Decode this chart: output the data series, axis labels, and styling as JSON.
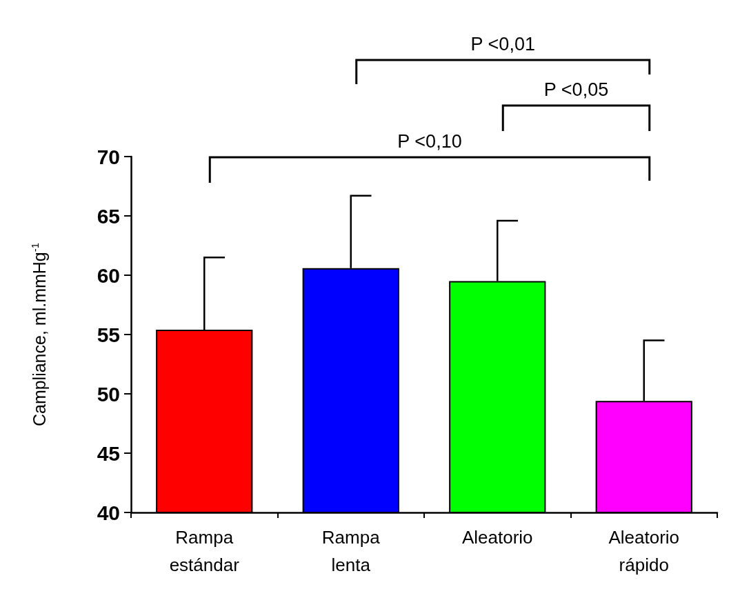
{
  "chart_data": {
    "type": "bar",
    "ylabel": "Campliance, ml.mmHg$^{-1}$",
    "categories": [
      "Rampa estándar",
      "Rampa lenta",
      "Aleatorio",
      "Aleatorio rápido"
    ],
    "values": [
      55.4,
      60.6,
      59.5,
      49.4
    ],
    "colors": [
      "#ff0000",
      "#0000ff",
      "#00ff00",
      "#ff00ff"
    ],
    "errors": [
      [
        55.4,
        61.5
      ],
      [
        60.6,
        66.7
      ],
      [
        59.5,
        64.6
      ],
      [
        49.4,
        54.5
      ]
    ],
    "ylim": [
      40,
      70
    ],
    "yticks": [
      40,
      45,
      50,
      55,
      60,
      65,
      70
    ],
    "grid": false,
    "annotations": [
      "P <0,01",
      "P <0,05",
      "P <0,10"
    ]
  }
}
